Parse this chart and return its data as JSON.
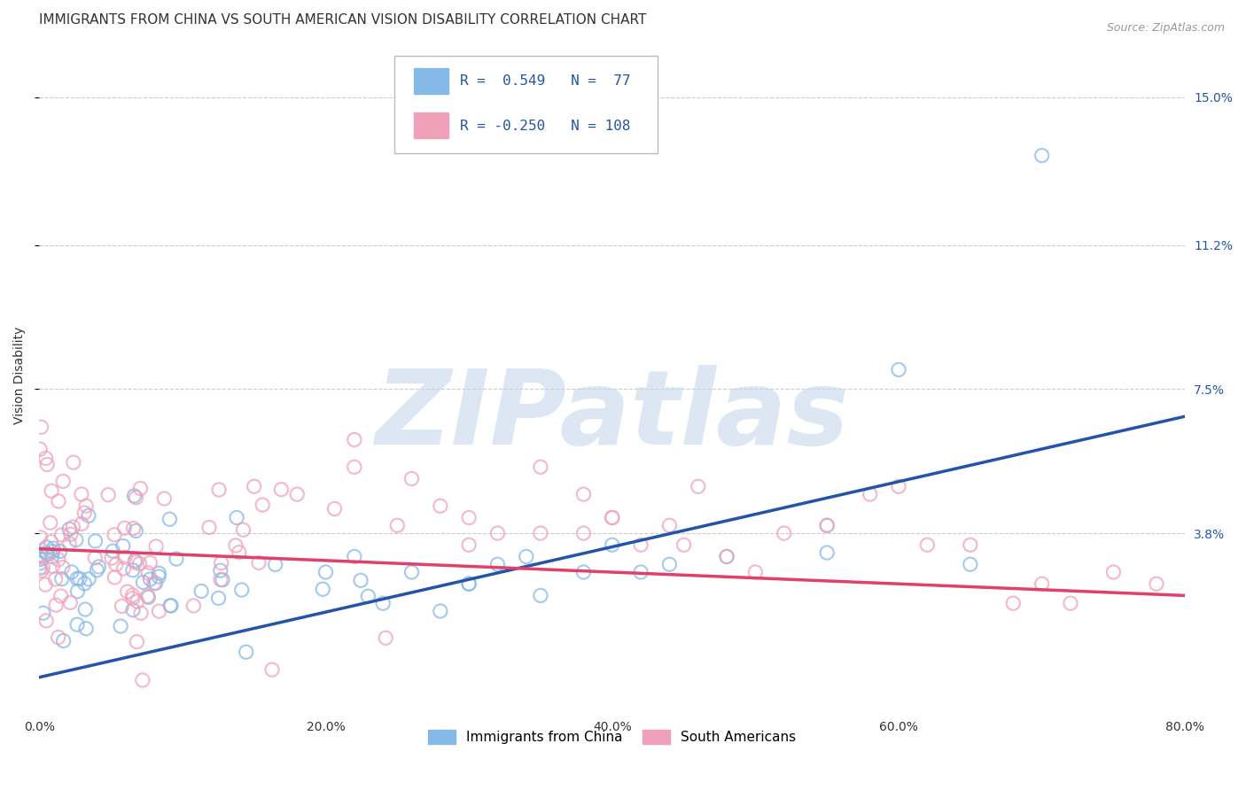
{
  "title": "IMMIGRANTS FROM CHINA VS SOUTH AMERICAN VISION DISABILITY CORRELATION CHART",
  "source": "Source: ZipAtlas.com",
  "xlabel_ticks": [
    "0.0%",
    "20.0%",
    "40.0%",
    "60.0%",
    "80.0%"
  ],
  "xlabel_tick_vals": [
    0.0,
    0.2,
    0.4,
    0.6,
    0.8
  ],
  "ylabel_ticks": [
    "15.0%",
    "11.2%",
    "7.5%",
    "3.8%"
  ],
  "ylabel_tick_vals": [
    0.15,
    0.112,
    0.075,
    0.038
  ],
  "ylabel_label": "Vision Disability",
  "legend_labels": [
    "Immigrants from China",
    "South Americans"
  ],
  "china_color": "#85B9E8",
  "sa_color": "#F0A0B8",
  "china_line_color": "#2255AA",
  "sa_line_color": "#E0406A",
  "china_R": 0.549,
  "china_N": 77,
  "sa_R": -0.25,
  "sa_N": 108,
  "xlim": [
    0.0,
    0.8
  ],
  "ylim": [
    -0.008,
    0.165
  ],
  "china_trend_x": [
    0.0,
    0.8
  ],
  "china_trend_y": [
    0.001,
    0.068
  ],
  "sa_trend_x": [
    0.0,
    0.8
  ],
  "sa_trend_y": [
    0.034,
    0.022
  ],
  "background_color": "#FFFFFF",
  "grid_color": "#CCCCCC",
  "title_fontsize": 11,
  "axis_label_fontsize": 10,
  "tick_fontsize": 10,
  "watermark_text": "ZIPatlas",
  "watermark_color": "#C5D8EC"
}
